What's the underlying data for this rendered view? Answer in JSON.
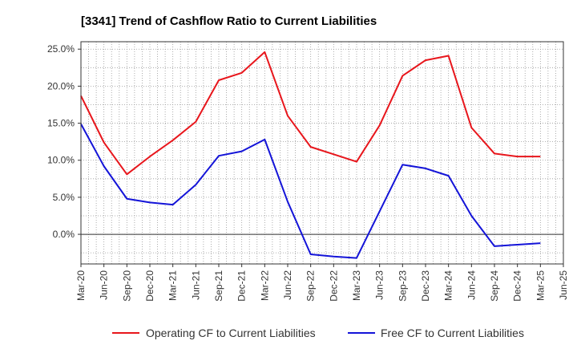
{
  "chart_data": {
    "type": "line",
    "title": "[3341]  Trend of Cashflow Ratio to Current Liabilities",
    "xlabel": "",
    "ylabel": "",
    "x": [
      "Mar-20",
      "Jun-20",
      "Sep-20",
      "Dec-20",
      "Mar-21",
      "Jun-21",
      "Sep-21",
      "Dec-21",
      "Mar-22",
      "Jun-22",
      "Sep-22",
      "Dec-22",
      "Mar-23",
      "Jun-23",
      "Sep-23",
      "Dec-23",
      "Mar-24",
      "Jun-24",
      "Sep-24",
      "Dec-24",
      "Mar-25",
      "Jun-25"
    ],
    "ylim": [
      -4,
      26
    ],
    "yticks": [
      0,
      5,
      10,
      15,
      20,
      25
    ],
    "ytick_labels": [
      "0.0%",
      "5.0%",
      "10.0%",
      "15.0%",
      "20.0%",
      "25.0%"
    ],
    "grid": true,
    "legend": "bottom",
    "series": [
      {
        "name": "Operating CF to Current Liabilities",
        "color": "#e8161c",
        "values": [
          18.7,
          12.4,
          8.1,
          10.5,
          12.7,
          15.2,
          20.8,
          21.8,
          24.6,
          16.0,
          11.8,
          10.8,
          9.8,
          14.7,
          21.4,
          23.5,
          24.1,
          14.4,
          10.9,
          10.5,
          10.5,
          null
        ]
      },
      {
        "name": "Free CF to Current Liabilities",
        "color": "#1414d8",
        "values": [
          14.9,
          9.2,
          4.8,
          4.3,
          4.0,
          6.7,
          10.6,
          11.2,
          12.8,
          4.4,
          -2.7,
          -3.0,
          -3.2,
          3.1,
          9.4,
          8.9,
          7.9,
          2.5,
          -1.6,
          -1.4,
          -1.2,
          null
        ]
      }
    ]
  }
}
